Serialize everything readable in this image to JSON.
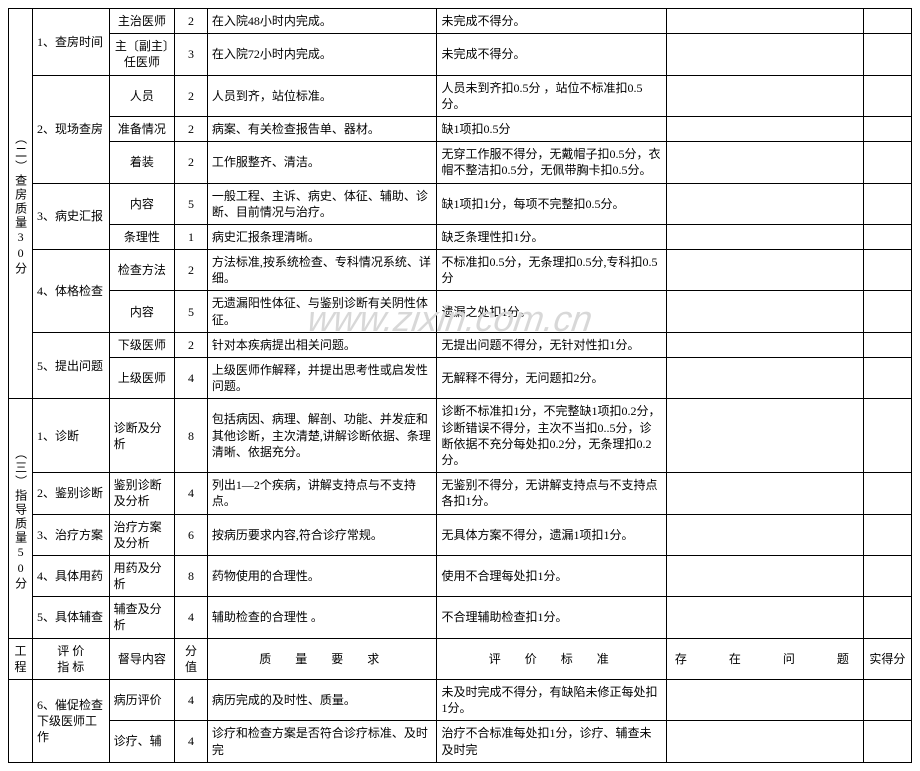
{
  "watermark": "www.zixin.com.cn",
  "sections": {
    "s2": {
      "label": "（二）查房质量30分"
    },
    "s3": {
      "label": "（三）指导质量50分"
    }
  },
  "headers": {
    "proj": "工程",
    "indicator": "评 价\n指 标",
    "item": "督导内容",
    "score": "分值",
    "req": "质　量　要　求",
    "std": "评　价　标　准",
    "prob": "存　　在　　问　　题",
    "act": "实得分"
  },
  "rows": [
    {
      "ind": "1、查房时间",
      "item": "主治医师",
      "score": "2",
      "req": "在入院48小时内完成。",
      "std": "未完成不得分。"
    },
    {
      "ind": "",
      "item": "主〔副主〕任医师",
      "score": "3",
      "req": "在入院72小时内完成。",
      "std": "未完成不得分。"
    },
    {
      "ind": "2、现场查房",
      "item": "人员",
      "score": "2",
      "req": "人员到齐，站位标准。",
      "std": "人员未到齐扣0.5分 ，站位不标准扣0.5分。"
    },
    {
      "ind": "",
      "item": "准备情况",
      "score": "2",
      "req": "病案、有关检查报告单、器材。",
      "std": "缺1项扣0.5分"
    },
    {
      "ind": "",
      "item": "着装",
      "score": "2",
      "req": "工作服整齐、清洁。",
      "std": "无穿工作服不得分，无戴帽子扣0.5分，衣帽不整洁扣0.5分，无佩带胸卡扣0.5分。"
    },
    {
      "ind": "3、病史汇报",
      "item": "内容",
      "score": "5",
      "req": "一般工程、主诉、病史、体征、辅助、诊断、目前情况与治疗。",
      "std": "缺1项扣1分，每项不完整扣0.5分。"
    },
    {
      "ind": "",
      "item": "条理性",
      "score": "1",
      "req": "病史汇报条理清晰。",
      "std": "缺乏条理性扣1分。"
    },
    {
      "ind": "4、体格检查",
      "item": "检查方法",
      "score": "2",
      "req": "方法标准,按系统检查、专科情况系统、详细。",
      "std": "不标准扣0.5分，无条理扣0.5分,专科扣0.5分"
    },
    {
      "ind": "",
      "item": "内容",
      "score": "5",
      "req": "无遗漏阳性体征、与鉴别诊断有关阴性体征。",
      "std": "遗漏之处扣1分。"
    },
    {
      "ind": "5、提出问题",
      "item": "下级医师",
      "score": "2",
      "req": "针对本疾病提出相关问题。",
      "std": "无提出问题不得分，无针对性扣1分。"
    },
    {
      "ind": "",
      "item": "上级医师",
      "score": "4",
      "req": "上级医师作解释，并提出思考性或启发性问题。",
      "std": "无解释不得分，无问题扣2分。"
    },
    {
      "ind": "1、诊断",
      "item": "诊断及分析",
      "score": "8",
      "req": "包括病因、病理、解剖、功能、并发症和其他诊断，主次清楚,讲解诊断依据、条理清晰、依据充分。",
      "std": "诊断不标准扣1分，不完整缺1项扣0.2分，诊断错误不得分，主次不当扣0..5分，诊断依据不充分每处扣0.2分，无条理扣0.2分。"
    },
    {
      "ind": "2、鉴别诊断",
      "item": "鉴别诊断及分析",
      "score": "4",
      "req": "列出1—2个疾病，讲解支持点与不支持点。",
      "std": "无鉴别不得分，无讲解支持点与不支持点各扣1分。"
    },
    {
      "ind": "3、治疗方案",
      "item": "治疗方案及分析",
      "score": "6",
      "req": "按病历要求内容,符合诊疗常规。",
      "std": "无具体方案不得分，遗漏1项扣1分。"
    },
    {
      "ind": "4、具体用药",
      "item": "用药及分析",
      "score": "8",
      "req": "药物使用的合理性。",
      "std": "使用不合理每处扣1分。"
    },
    {
      "ind": "5、具体辅查",
      "item": "辅查及分析",
      "score": "4",
      "req": "辅助检查的合理性 。",
      "std": "不合理辅助检查扣1分。"
    },
    {
      "ind": "6、催促检查下级医师工作",
      "item": "病历评价",
      "score": "4",
      "req": "病历完成的及时性、质量。",
      "std": "未及时完成不得分，有缺陷未修正每处扣1分。"
    },
    {
      "ind": "",
      "item": "诊疗、辅",
      "score": "4",
      "req": "诊疗和检查方案是否符合诊疗标准、及时完",
      "std": "治疗不合标准每处扣1分，诊疗、辅查未及时完"
    }
  ]
}
